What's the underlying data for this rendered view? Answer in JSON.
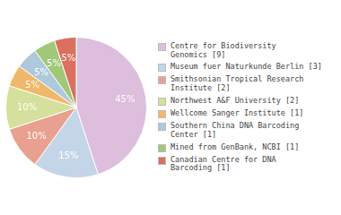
{
  "chart_data": {
    "type": "pie",
    "categories": [
      "Centre for Biodiversity\nGenomics [9]",
      "Museum fuer Naturkunde Berlin [3]",
      "Smithsonian Tropical Research\nInstitute [2]",
      "Northwest A&F University [2]",
      "Wellcome Sanger Institute [1]",
      "Southern China DNA Barcoding\nCenter [1]",
      "Mined from GenBank, NCBI [1]",
      "Canadian Centre for DNA\nBarcoding [1]"
    ],
    "values": [
      45,
      15,
      10,
      10,
      5,
      5,
      5,
      5
    ],
    "value_labels": [
      "45%",
      "15%",
      "10%",
      "10%",
      "5%",
      "5%",
      "5%",
      "5%"
    ],
    "colors": [
      "#ddbedd",
      "#c5d5e8",
      "#e8a090",
      "#d4e09b",
      "#f0b86a",
      "#aec8dc",
      "#a0c878",
      "#d97060"
    ],
    "data_labels": true,
    "legend": "right"
  }
}
